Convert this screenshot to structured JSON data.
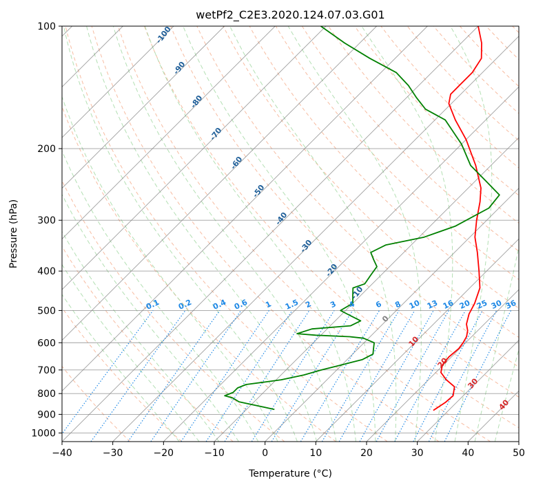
{
  "chart_data": {
    "type": "line",
    "title": "wetPf2_C2E3.2020.124.07.03.G01",
    "xlabel": "Temperature (°C)",
    "ylabel": "Pressure (hPa)",
    "xlim": [
      -40,
      50
    ],
    "ylim": [
      1050,
      100
    ],
    "y_scale": "log",
    "x_ticks": [
      -40,
      -30,
      -20,
      -10,
      0,
      10,
      20,
      30,
      40,
      50
    ],
    "x_tick_labels": [
      "−40",
      "−30",
      "−20",
      "−10",
      "0",
      "10",
      "20",
      "30",
      "40",
      "50"
    ],
    "y_ticks": [
      100,
      200,
      300,
      400,
      500,
      600,
      700,
      800,
      900,
      1000
    ],
    "y_tick_labels": [
      "100",
      "200",
      "300",
      "400",
      "500",
      "600",
      "700",
      "800",
      "900",
      "1000"
    ],
    "grid": true,
    "legend": "none",
    "colors": {
      "temperature": "#ff0000",
      "dewpoint": "#008000",
      "isotherm": "#808080",
      "dry_adiabat": "#f4a582",
      "moist_adiabat": "#a6d9a6",
      "mixing_ratio": "#1e88e5",
      "dry_adiabat_label": "#1f5f99",
      "moist_adiabat_label": "#d62728",
      "freezing_label": "#808080"
    },
    "series": [
      {
        "color": "#ff0000",
        "points": [
          [
            27.0,
            880
          ],
          [
            27.8,
            840
          ],
          [
            28.0,
            810
          ],
          [
            26.5,
            770
          ],
          [
            23.5,
            740
          ],
          [
            21.0,
            710
          ],
          [
            19.8,
            680
          ],
          [
            19.5,
            650
          ],
          [
            19.8,
            620
          ],
          [
            19.5,
            600
          ],
          [
            19.0,
            580
          ],
          [
            18.0,
            560
          ],
          [
            16.5,
            540
          ],
          [
            15.0,
            510
          ],
          [
            14.0,
            480
          ],
          [
            12.0,
            440
          ],
          [
            8.5,
            400
          ],
          [
            4.5,
            360
          ],
          [
            1.0,
            330
          ],
          [
            -2.0,
            300
          ],
          [
            -5.0,
            270
          ],
          [
            -7.5,
            250
          ],
          [
            -13.0,
            220
          ],
          [
            -20.0,
            190
          ],
          [
            -26.0,
            170
          ],
          [
            -30.5,
            155
          ],
          [
            -32.0,
            147
          ],
          [
            -32.0,
            140
          ],
          [
            -32.0,
            130
          ],
          [
            -33.0,
            120
          ],
          [
            -36.0,
            110
          ],
          [
            -40.0,
            100
          ]
        ]
      },
      {
        "color": "#008000",
        "points": [
          [
            -4.5,
            875
          ],
          [
            -13.0,
            838
          ],
          [
            -15.0,
            820
          ],
          [
            -17.0,
            810
          ],
          [
            -16.0,
            795
          ],
          [
            -16.0,
            775
          ],
          [
            -15.0,
            760
          ],
          [
            -12.0,
            750
          ],
          [
            -9.0,
            740
          ],
          [
            -5.5,
            720
          ],
          [
            -3.0,
            700
          ],
          [
            0.0,
            680
          ],
          [
            3.0,
            660
          ],
          [
            4.0,
            640
          ],
          [
            3.0,
            620
          ],
          [
            2.0,
            600
          ],
          [
            -1.0,
            585
          ],
          [
            -4.0,
            580
          ],
          [
            -11.0,
            575
          ],
          [
            -15.0,
            570
          ],
          [
            -13.0,
            555
          ],
          [
            -6.0,
            545
          ],
          [
            -5.0,
            530
          ],
          [
            -9.0,
            510
          ],
          [
            -11.0,
            500
          ],
          [
            -10.0,
            480
          ],
          [
            -11.5,
            460
          ],
          [
            -13.0,
            440
          ],
          [
            -11.5,
            430
          ],
          [
            -12.0,
            410
          ],
          [
            -12.5,
            390
          ],
          [
            -14.5,
            375
          ],
          [
            -16.5,
            360
          ],
          [
            -15.0,
            345
          ],
          [
            -9.0,
            330
          ],
          [
            -5.0,
            310
          ],
          [
            -2.0,
            280
          ],
          [
            -2.5,
            260
          ],
          [
            -8.0,
            240
          ],
          [
            -14.0,
            220
          ],
          [
            -20.0,
            195
          ],
          [
            -28.0,
            170
          ],
          [
            -34.0,
            160
          ],
          [
            -38.0,
            150
          ],
          [
            -42.0,
            140
          ],
          [
            -47.0,
            130
          ],
          [
            -55.0,
            120
          ],
          [
            -63.0,
            110
          ],
          [
            -71.0,
            100
          ]
        ]
      }
    ],
    "dry_adiabat_labels": [
      "-100",
      "-90",
      "-80",
      "-70",
      "-60",
      "-50",
      "-40",
      "-30",
      "-20",
      "-10"
    ],
    "moist_adiabat_labels": [
      "0",
      "10",
      "20",
      "30",
      "40"
    ],
    "mixing_ratio_labels": [
      "0.1",
      "0.2",
      "0.4",
      "0.6",
      "1",
      "1.5",
      "2",
      "3",
      "4",
      "6",
      "8",
      "10",
      "13",
      "16",
      "20",
      "25",
      "30",
      "36"
    ]
  }
}
